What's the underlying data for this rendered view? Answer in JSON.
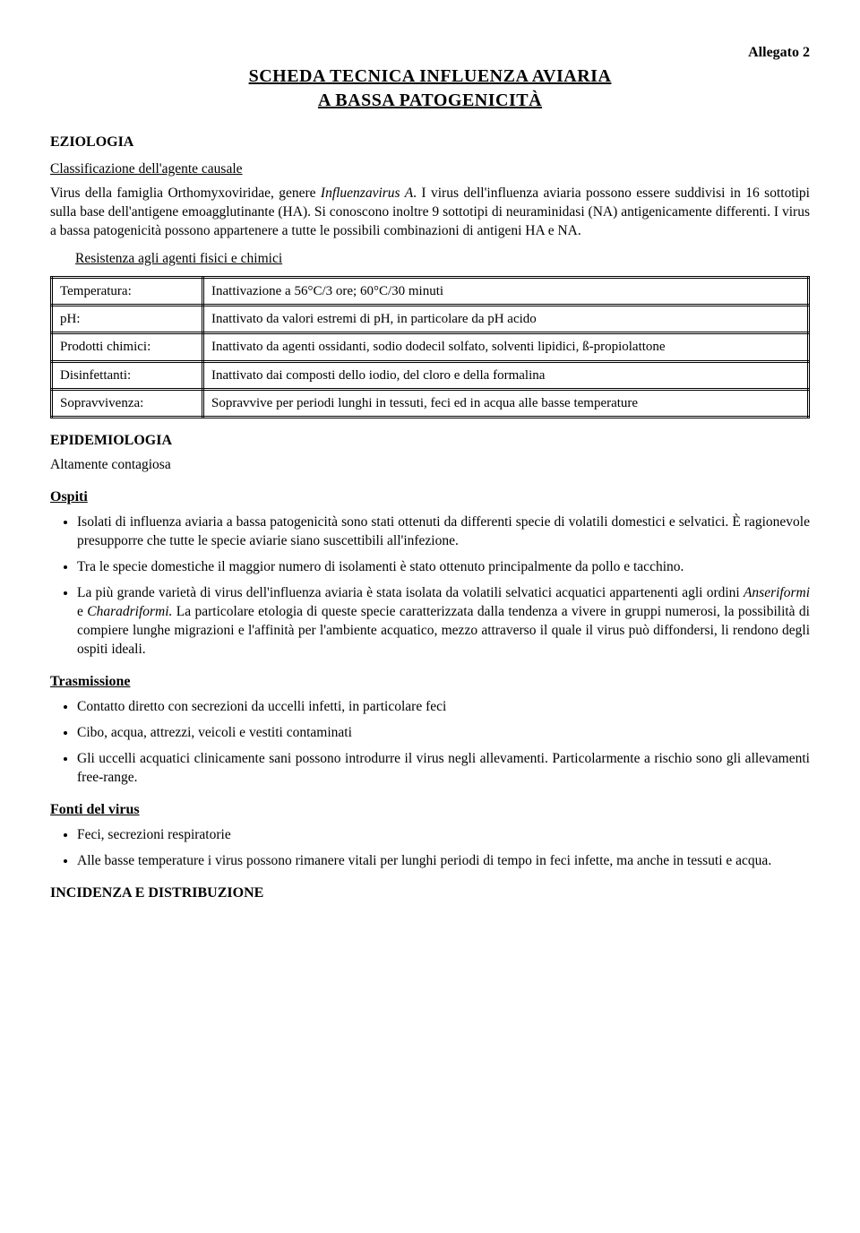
{
  "header": {
    "allegato": "Allegato 2",
    "title_line1": "SCHEDA TECNICA INFLUENZA AVIARIA",
    "title_line2": "A BASSA PATOGENICITÀ"
  },
  "eziologia": {
    "heading": "EZIOLOGIA",
    "class_heading": "Classificazione dell'agente causale",
    "para1_a": "Virus della famiglia Orthomyxoviridae, genere ",
    "para1_b": "Influenzavirus A",
    "para1_c": ". I virus dell'influenza aviaria possono essere suddivisi in 16 sottotipi sulla base dell'antigene emoagglutinante (HA). Si conoscono inoltre 9 sottotipi di neuraminidasi (NA) antigenicamente differenti. I virus a bassa patogenicità possono appartenere a tutte le possibili combinazioni di antigeni HA e NA.",
    "resist_heading": "Resistenza agli agenti fisici e chimici",
    "table": [
      {
        "label": "Temperatura:",
        "value": "Inattivazione a 56°C/3 ore; 60°C/30 minuti"
      },
      {
        "label": "pH:",
        "value": "Inattivato da valori estremi di pH, in particolare da pH acido"
      },
      {
        "label": "Prodotti chimici:",
        "value": "Inattivato da agenti ossidanti, sodio dodecil solfato, solventi lipidici, ß-propiolattone"
      },
      {
        "label": "Disinfettanti:",
        "value": "Inattivato dai composti dello iodio, del cloro e della formalina"
      },
      {
        "label": "Sopravvivenza:",
        "value": "Sopravvive per periodi lunghi in tessuti, feci ed in acqua alle basse temperature"
      }
    ]
  },
  "epidemiologia": {
    "heading": "EPIDEMIOLOGIA",
    "contagiosa": "Altamente contagiosa",
    "ospiti_heading": "Ospiti",
    "ospiti_items": [
      "Isolati di influenza aviaria a bassa patogenicità sono stati ottenuti da differenti specie di volatili domestici e selvatici. È ragionevole presupporre che tutte le specie aviarie siano suscettibili all'infezione.",
      "Tra le specie domestiche il maggior numero di isolamenti è stato ottenuto principalmente da pollo e tacchino."
    ],
    "ospiti_item3_a": "La più grande varietà di virus dell'influenza aviaria è stata isolata da volatili selvatici acquatici appartenenti agli ordini ",
    "ospiti_item3_b": "Anseriformi",
    "ospiti_item3_c": " e ",
    "ospiti_item3_d": "Charadriformi.",
    "ospiti_item3_e": " La particolare etologia di queste specie caratterizzata dalla tendenza a vivere in gruppi numerosi, la possibilità di compiere lunghe migrazioni e l'affinità per l'ambiente acquatico, mezzo attraverso il quale il virus può diffondersi, li rendono degli ospiti ideali.",
    "trasmissione_heading": "Trasmissione",
    "trasmissione_items": [
      "Contatto diretto con secrezioni da uccelli infetti, in particolare feci",
      "Cibo, acqua, attrezzi, veicoli e vestiti contaminati",
      "Gli uccelli acquatici clinicamente sani possono introdurre il virus negli allevamenti. Particolarmente a rischio sono gli allevamenti free-range."
    ],
    "fonti_heading": "Fonti del virus",
    "fonti_items": [
      "Feci, secrezioni respiratorie",
      "Alle basse temperature i virus possono rimanere vitali per lunghi periodi di tempo in feci infette, ma anche in tessuti e acqua."
    ]
  },
  "incidenza": {
    "heading": "INCIDENZA E DISTRIBUZIONE"
  }
}
